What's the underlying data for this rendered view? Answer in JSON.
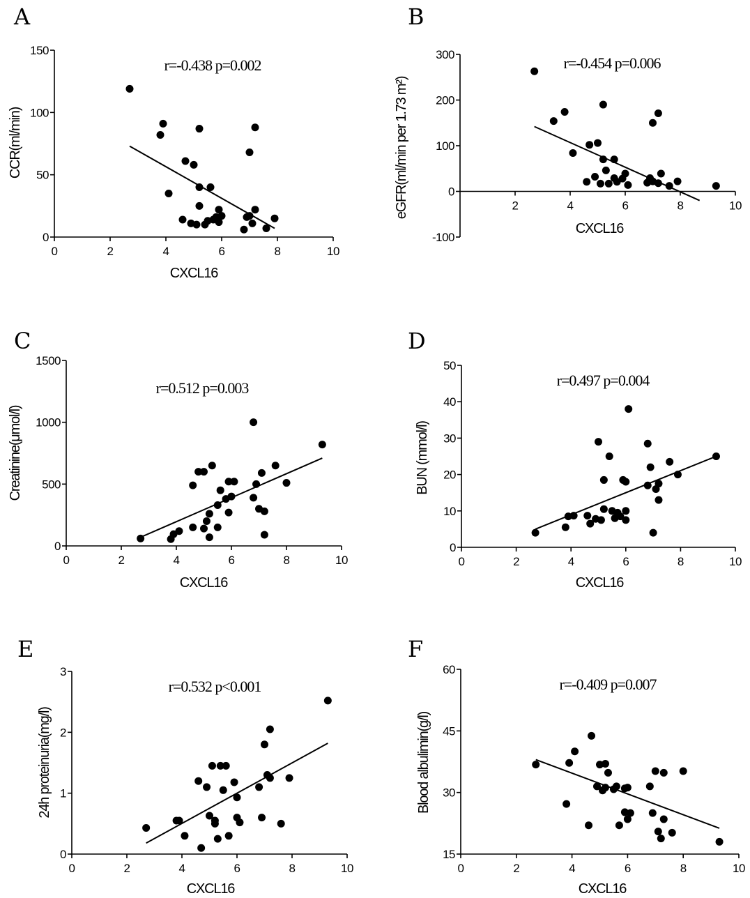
{
  "chart_data": [
    {
      "panel": "A",
      "type": "scatter",
      "stat": "r=-0.438  p=0.002",
      "xlabel": "CXCL16",
      "ylabel": "CCR(ml/min)",
      "xlim": [
        0,
        10
      ],
      "ylim": [
        0,
        150
      ],
      "xticks": [
        0,
        2,
        4,
        6,
        8,
        10
      ],
      "yticks": [
        0,
        50,
        100,
        150
      ],
      "fit": {
        "x": [
          2.7,
          7.9
        ],
        "y": [
          73,
          7
        ]
      },
      "points": [
        [
          2.7,
          119
        ],
        [
          3.8,
          82
        ],
        [
          3.9,
          91
        ],
        [
          4.1,
          35
        ],
        [
          4.7,
          61
        ],
        [
          4.6,
          14
        ],
        [
          4.9,
          11
        ],
        [
          5.0,
          58
        ],
        [
          5.1,
          10
        ],
        [
          5.2,
          40
        ],
        [
          5.2,
          25
        ],
        [
          5.2,
          87
        ],
        [
          5.4,
          10
        ],
        [
          5.5,
          13
        ],
        [
          5.6,
          40
        ],
        [
          5.7,
          14
        ],
        [
          5.8,
          16
        ],
        [
          5.9,
          12
        ],
        [
          5.9,
          22
        ],
        [
          6.0,
          17
        ],
        [
          6.8,
          6
        ],
        [
          6.9,
          16
        ],
        [
          7.0,
          68
        ],
        [
          7.0,
          17
        ],
        [
          7.1,
          11
        ],
        [
          7.2,
          22
        ],
        [
          7.2,
          88
        ],
        [
          7.6,
          7
        ],
        [
          7.9,
          15
        ]
      ]
    },
    {
      "panel": "B",
      "type": "scatter",
      "stat": "r=-0.454  p=0.006",
      "xlabel": "CXCL16",
      "ylabel": "eGFR(ml/min per 1.73 m²)",
      "xlim": [
        0,
        10
      ],
      "ylim": [
        -100,
        300
      ],
      "xticks": [
        2,
        4,
        6,
        8,
        10
      ],
      "yticks": [
        -100,
        0,
        100,
        200,
        300
      ],
      "fit": {
        "x": [
          2.7,
          8.7
        ],
        "y": [
          142,
          -20
        ]
      },
      "points": [
        [
          2.7,
          263
        ],
        [
          3.4,
          154
        ],
        [
          3.8,
          174
        ],
        [
          4.1,
          84
        ],
        [
          4.6,
          21
        ],
        [
          4.7,
          102
        ],
        [
          4.9,
          32
        ],
        [
          5.0,
          106
        ],
        [
          5.1,
          17
        ],
        [
          5.2,
          70
        ],
        [
          5.2,
          190
        ],
        [
          5.3,
          46
        ],
        [
          5.4,
          17
        ],
        [
          5.6,
          29
        ],
        [
          5.6,
          70
        ],
        [
          5.7,
          21
        ],
        [
          5.9,
          28
        ],
        [
          6.0,
          39
        ],
        [
          6.1,
          14
        ],
        [
          6.8,
          19
        ],
        [
          6.9,
          29
        ],
        [
          7.0,
          22
        ],
        [
          7.0,
          150
        ],
        [
          7.2,
          18
        ],
        [
          7.2,
          171
        ],
        [
          7.3,
          39
        ],
        [
          7.6,
          12
        ],
        [
          7.9,
          22
        ],
        [
          9.3,
          12
        ]
      ]
    },
    {
      "panel": "C",
      "type": "scatter",
      "stat": "r=0.512  p=0.003",
      "xlabel": "CXCL16",
      "ylabel": "Creatinine(μmol/l)",
      "xlim": [
        0,
        10
      ],
      "ylim": [
        0,
        1500
      ],
      "xticks": [
        0,
        2,
        4,
        6,
        8,
        10
      ],
      "yticks": [
        0,
        500,
        1000,
        1500
      ],
      "fit": {
        "x": [
          2.7,
          9.3
        ],
        "y": [
          70,
          710
        ]
      },
      "points": [
        [
          2.7,
          60
        ],
        [
          3.8,
          55
        ],
        [
          3.9,
          95
        ],
        [
          4.1,
          120
        ],
        [
          4.6,
          490
        ],
        [
          4.6,
          150
        ],
        [
          4.8,
          600
        ],
        [
          5.0,
          140
        ],
        [
          5.0,
          600
        ],
        [
          5.1,
          200
        ],
        [
          5.2,
          70
        ],
        [
          5.2,
          260
        ],
        [
          5.3,
          650
        ],
        [
          5.5,
          150
        ],
        [
          5.5,
          330
        ],
        [
          5.6,
          450
        ],
        [
          5.8,
          380
        ],
        [
          5.9,
          520
        ],
        [
          5.9,
          270
        ],
        [
          6.0,
          400
        ],
        [
          6.1,
          520
        ],
        [
          6.8,
          1000
        ],
        [
          6.8,
          390
        ],
        [
          6.9,
          500
        ],
        [
          7.0,
          300
        ],
        [
          7.1,
          590
        ],
        [
          7.2,
          280
        ],
        [
          7.2,
          90
        ],
        [
          7.6,
          650
        ],
        [
          8.0,
          510
        ],
        [
          9.3,
          820
        ]
      ]
    },
    {
      "panel": "D",
      "type": "scatter",
      "stat": "r=0.497  p=0.004",
      "xlabel": "CXCL16",
      "ylabel": "BUN (mmol/l)",
      "xlim": [
        0,
        10
      ],
      "ylim": [
        0,
        50
      ],
      "xticks": [
        0,
        2,
        4,
        6,
        8,
        10
      ],
      "yticks": [
        0,
        10,
        20,
        30,
        40,
        50
      ],
      "fit": {
        "x": [
          2.7,
          9.3
        ],
        "y": [
          5,
          25
        ]
      },
      "points": [
        [
          2.7,
          4
        ],
        [
          3.8,
          5.5
        ],
        [
          3.9,
          8.5
        ],
        [
          4.1,
          8.7
        ],
        [
          4.6,
          8.7
        ],
        [
          4.7,
          6.5
        ],
        [
          4.9,
          7.8
        ],
        [
          5.0,
          29
        ],
        [
          5.1,
          7.5
        ],
        [
          5.2,
          10.5
        ],
        [
          5.2,
          18.5
        ],
        [
          5.4,
          25
        ],
        [
          5.5,
          10
        ],
        [
          5.6,
          8
        ],
        [
          5.7,
          9.5
        ],
        [
          5.8,
          8.5
        ],
        [
          5.9,
          18.5
        ],
        [
          6.0,
          18
        ],
        [
          6.0,
          7.5
        ],
        [
          6.0,
          10
        ],
        [
          6.1,
          38
        ],
        [
          6.8,
          28.5
        ],
        [
          6.8,
          17
        ],
        [
          6.9,
          22
        ],
        [
          7.0,
          4
        ],
        [
          7.1,
          16
        ],
        [
          7.2,
          13
        ],
        [
          7.2,
          17.5
        ],
        [
          7.6,
          23.5
        ],
        [
          7.9,
          20
        ],
        [
          9.3,
          25
        ]
      ]
    },
    {
      "panel": "E",
      "type": "scatter",
      "stat": "r=0.532  p<0.001",
      "xlabel": "CXCL16",
      "ylabel": "24h proteinuria(mg/l)",
      "xlim": [
        0,
        10
      ],
      "ylim": [
        0,
        3
      ],
      "xticks": [
        0,
        2,
        4,
        6,
        8,
        10
      ],
      "yticks": [
        0,
        1,
        2,
        3
      ],
      "fit": {
        "x": [
          2.7,
          9.3
        ],
        "y": [
          0.18,
          1.82
        ]
      },
      "points": [
        [
          2.7,
          0.43
        ],
        [
          3.8,
          0.55
        ],
        [
          3.9,
          0.55
        ],
        [
          4.1,
          0.3
        ],
        [
          4.6,
          1.2
        ],
        [
          4.7,
          0.1
        ],
        [
          4.9,
          1.1
        ],
        [
          5.0,
          0.63
        ],
        [
          5.1,
          1.45
        ],
        [
          5.2,
          0.55
        ],
        [
          5.2,
          0.5
        ],
        [
          5.3,
          0.25
        ],
        [
          5.4,
          1.45
        ],
        [
          5.5,
          1.05
        ],
        [
          5.6,
          1.45
        ],
        [
          5.7,
          0.3
        ],
        [
          5.9,
          1.18
        ],
        [
          6.0,
          0.6
        ],
        [
          6.0,
          0.93
        ],
        [
          6.1,
          0.52
        ],
        [
          6.8,
          1.1
        ],
        [
          6.9,
          0.6
        ],
        [
          7.0,
          1.8
        ],
        [
          7.1,
          1.3
        ],
        [
          7.2,
          1.25
        ],
        [
          7.2,
          2.05
        ],
        [
          7.6,
          0.5
        ],
        [
          7.9,
          1.25
        ],
        [
          9.3,
          2.52
        ]
      ]
    },
    {
      "panel": "F",
      "type": "scatter",
      "stat": "r=-0.409  p=0.007",
      "xlabel": "CXCL16",
      "ylabel": "Blood albulimin(g/l)",
      "xlim": [
        0,
        10
      ],
      "ylim": [
        15,
        60
      ],
      "xticks": [
        0,
        2,
        4,
        6,
        8,
        10
      ],
      "yticks": [
        15,
        30,
        45,
        60
      ],
      "fit": {
        "x": [
          2.7,
          9.3
        ],
        "y": [
          38,
          21.3
        ]
      },
      "points": [
        [
          2.7,
          36.8
        ],
        [
          3.8,
          27.2
        ],
        [
          3.9,
          37.2
        ],
        [
          4.1,
          40
        ],
        [
          4.6,
          22
        ],
        [
          4.7,
          43.8
        ],
        [
          4.9,
          31.5
        ],
        [
          5.0,
          36.8
        ],
        [
          5.1,
          30.5
        ],
        [
          5.2,
          31.2
        ],
        [
          5.2,
          37
        ],
        [
          5.3,
          34.8
        ],
        [
          5.5,
          30.8
        ],
        [
          5.6,
          31.5
        ],
        [
          5.7,
          22
        ],
        [
          5.9,
          25.2
        ],
        [
          5.9,
          31
        ],
        [
          6.0,
          23.5
        ],
        [
          6.0,
          31.2
        ],
        [
          6.1,
          25
        ],
        [
          6.8,
          31.5
        ],
        [
          6.9,
          25
        ],
        [
          7.0,
          35.2
        ],
        [
          7.1,
          20.5
        ],
        [
          7.2,
          18.8
        ],
        [
          7.3,
          34.8
        ],
        [
          7.3,
          23.5
        ],
        [
          7.6,
          20.2
        ],
        [
          8.0,
          35.2
        ],
        [
          9.3,
          18
        ]
      ]
    }
  ]
}
